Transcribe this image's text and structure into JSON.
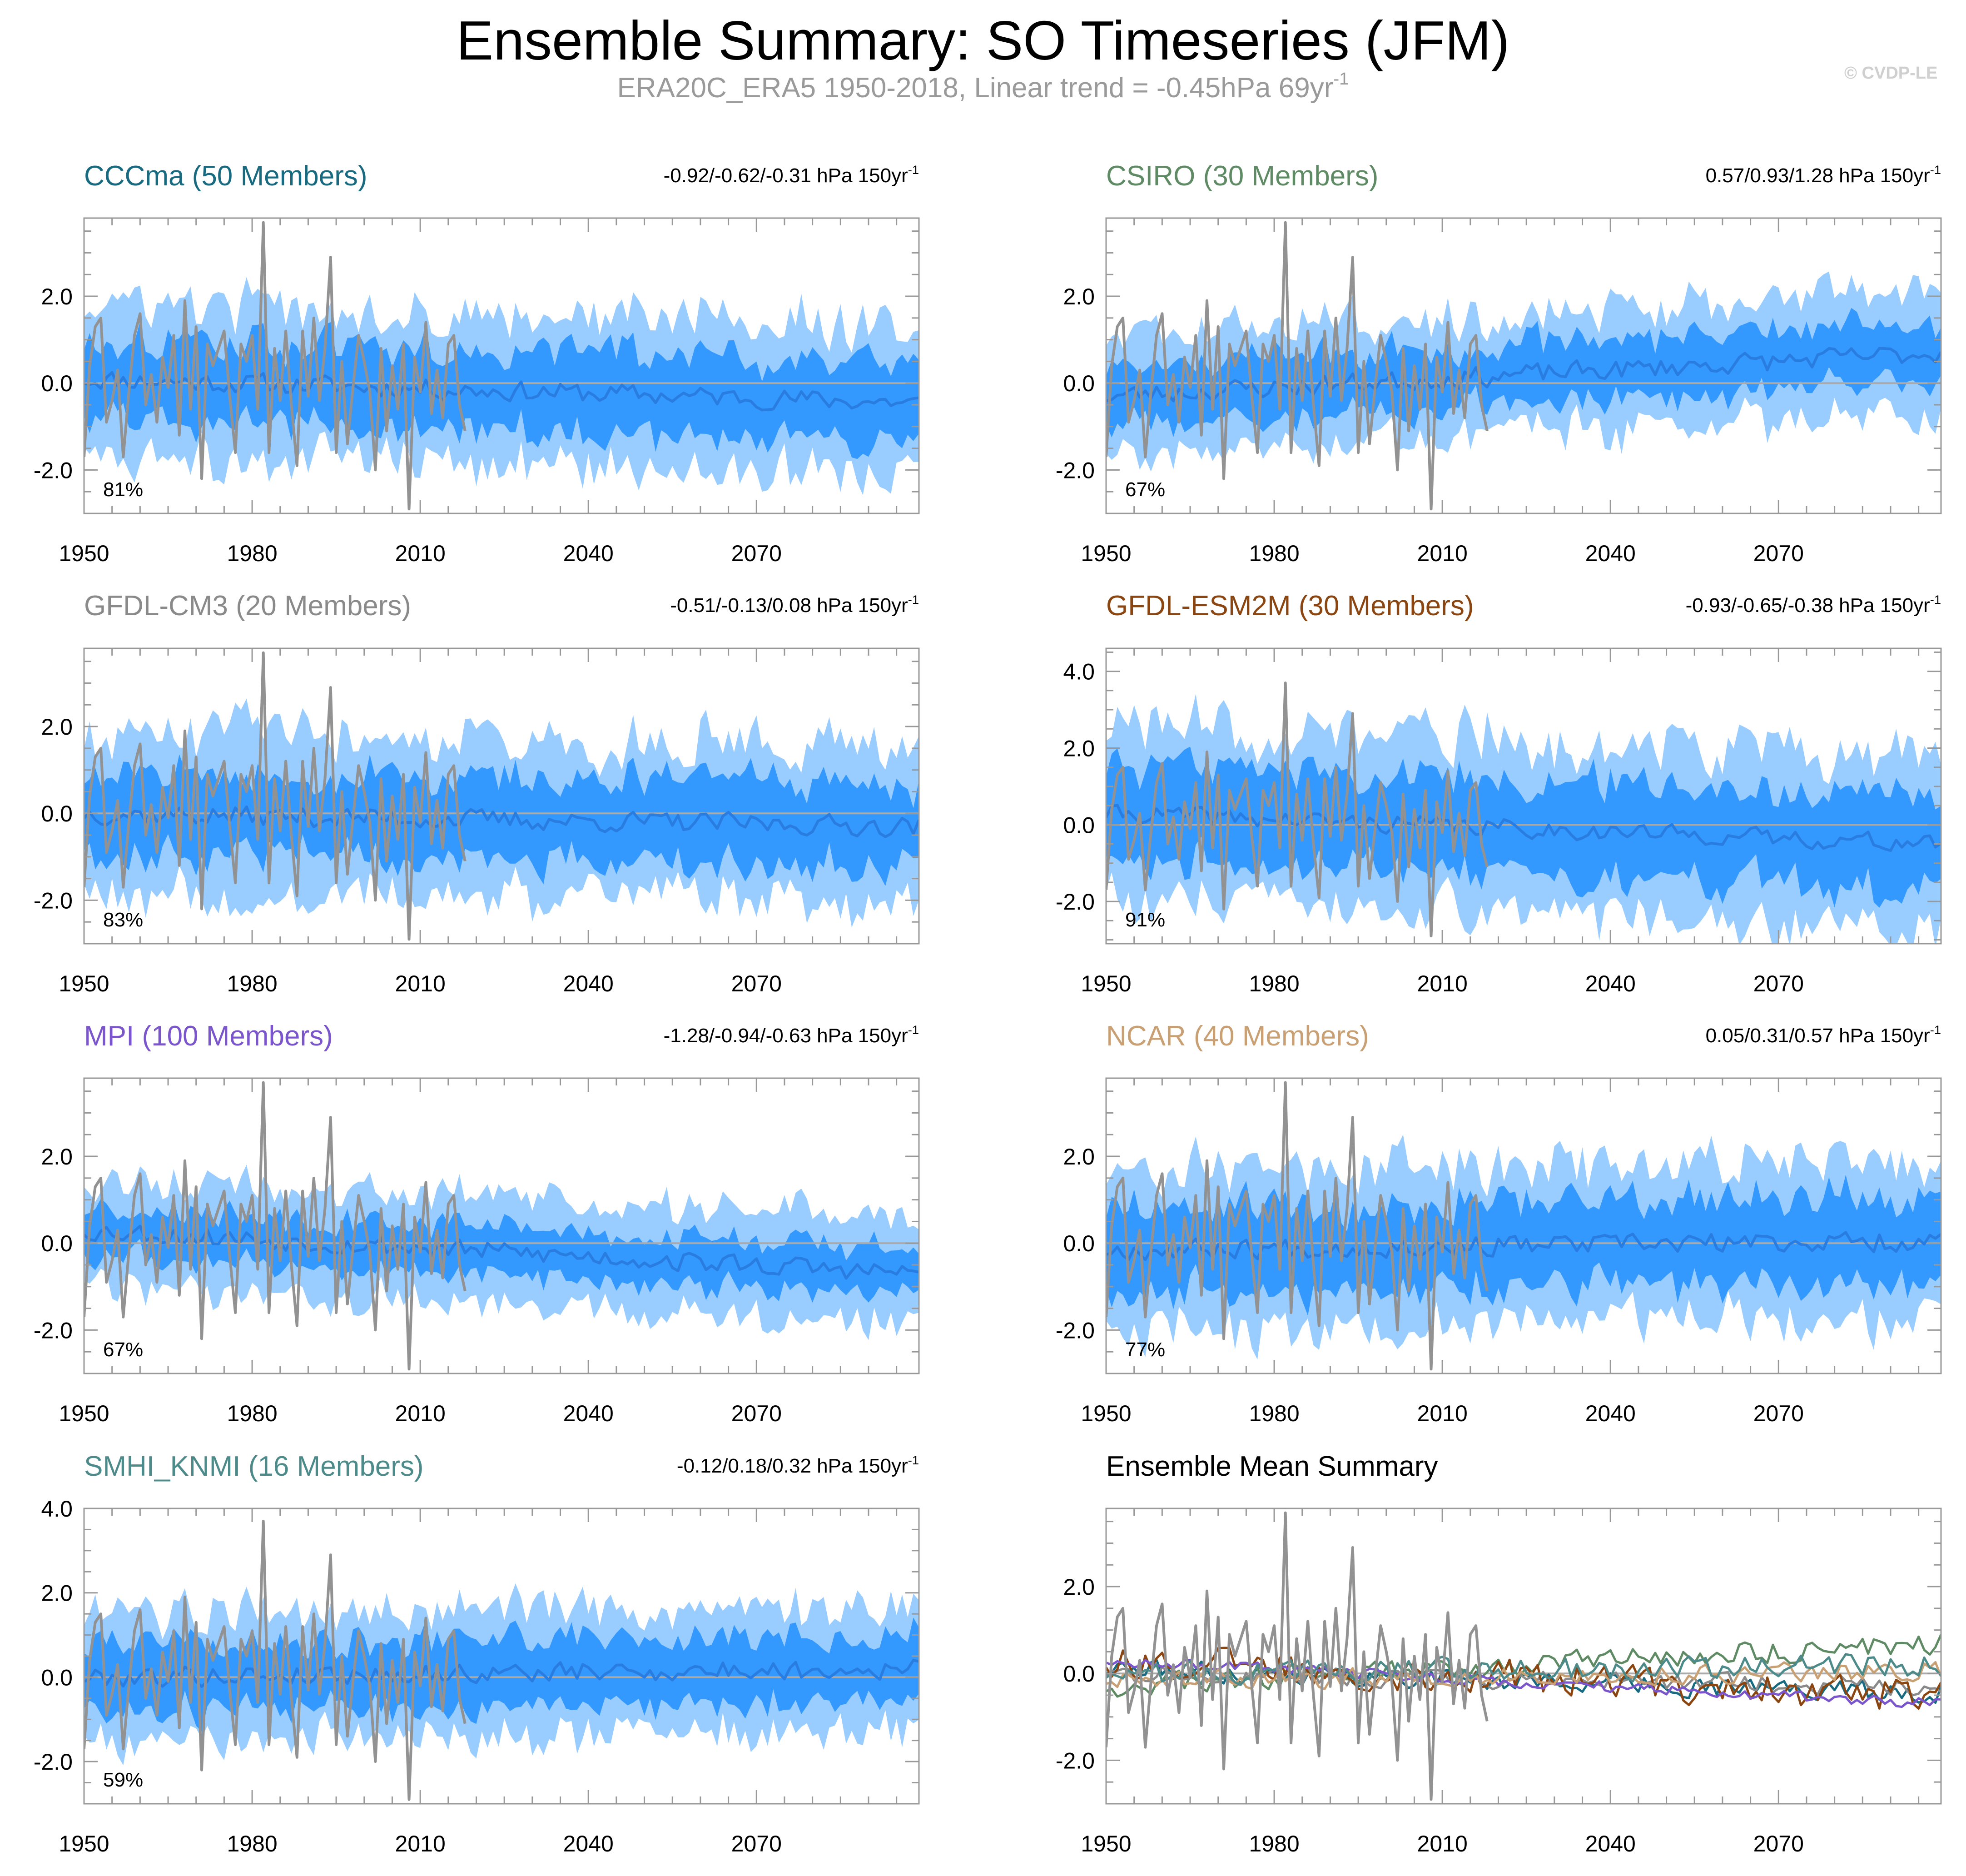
{
  "title": "Ensemble Summary: SO Timeseries (JFM)",
  "subtitle": {
    "main": "ERA20C_ERA5 1950-2018, Linear trend = -0.45hPa 69yr",
    "sup": "-1"
  },
  "credit": "© CVDP-LE",
  "colors": {
    "outer_band": "#99ccff",
    "inner_band": "#3399ff",
    "ens_mean": "#2a7de0",
    "observations": "#929292",
    "zero_line": "#aaaaaa"
  },
  "chart_data": [
    {
      "type": "area",
      "title": "CCCma (50 Members)",
      "title_color": "#186a80",
      "trend": "-0.92/-0.62/-0.31 hPa 150yr",
      "trend_sup": "-1",
      "percent": "81%",
      "x_range": [
        1950,
        2099
      ],
      "x_ticks": [
        "1950",
        "1980",
        "2010",
        "2040",
        "2070"
      ],
      "y_range": [
        -3.0,
        3.8
      ],
      "y_ticks": [
        "2.0",
        "0.0",
        "-2.0"
      ],
      "y_tick_values": [
        2.0,
        0.0,
        -2.0
      ],
      "mean_start": 0.1,
      "mean_end": -0.45,
      "inner_halfwidth": 0.95,
      "outer_halfwidth": 1.55,
      "seed": 11
    },
    {
      "type": "area",
      "title": "CSIRO (30 Members)",
      "title_color": "#5e8a64",
      "trend": "0.57/0.93/1.28 hPa 150yr",
      "trend_sup": "-1",
      "percent": "67%",
      "x_range": [
        1950,
        2099
      ],
      "x_ticks": [
        "1950",
        "1980",
        "2010",
        "2040",
        "2070"
      ],
      "y_range": [
        -3.0,
        3.8
      ],
      "y_ticks": [
        "2.0",
        "0.0",
        "-2.0"
      ],
      "y_tick_values": [
        2.0,
        0.0,
        -2.0
      ],
      "mean_start": -0.3,
      "mean_end": 0.7,
      "inner_halfwidth": 0.7,
      "outer_halfwidth": 1.25,
      "seed": 23
    },
    {
      "type": "area",
      "title": "GFDL-CM3 (20 Members)",
      "title_color": "#8a8a8a",
      "trend": "-0.51/-0.13/0.08 hPa 150yr",
      "trend_sup": "-1",
      "percent": "83%",
      "x_range": [
        1950,
        2099
      ],
      "x_ticks": [
        "1950",
        "1980",
        "2010",
        "2040",
        "2070"
      ],
      "y_range": [
        -3.0,
        3.8
      ],
      "y_ticks": [
        "2.0",
        "0.0",
        "-2.0"
      ],
      "y_tick_values": [
        2.0,
        0.0,
        -2.0
      ],
      "mean_start": 0.0,
      "mean_end": -0.3,
      "inner_halfwidth": 0.95,
      "outer_halfwidth": 1.6,
      "seed": 37
    },
    {
      "type": "area",
      "title": "GFDL-ESM2M (30 Members)",
      "title_color": "#8a4510",
      "trend": "-0.93/-0.65/-0.38 hPa 150yr",
      "trend_sup": "-1",
      "percent": "91%",
      "x_range": [
        1950,
        2099
      ],
      "x_ticks": [
        "1950",
        "1980",
        "2010",
        "2040",
        "2070"
      ],
      "y_range": [
        -3.1,
        4.6
      ],
      "y_ticks": [
        "4.0",
        "2.0",
        "0.0",
        "-2.0"
      ],
      "y_tick_values": [
        4.0,
        2.0,
        0.0,
        -2.0
      ],
      "mean_start": 0.3,
      "mean_end": -0.5,
      "inner_halfwidth": 1.3,
      "outer_halfwidth": 2.05,
      "seed": 41
    },
    {
      "type": "area",
      "title": "MPI (100 Members)",
      "title_color": "#7a55cc",
      "trend": "-1.28/-0.94/-0.63 hPa 150yr",
      "trend_sup": "-1",
      "percent": "67%",
      "x_range": [
        1950,
        2099
      ],
      "x_ticks": [
        "1950",
        "1980",
        "2010",
        "2040",
        "2070"
      ],
      "y_range": [
        -3.0,
        3.8
      ],
      "y_ticks": [
        "2.0",
        "0.0",
        "-2.0"
      ],
      "y_tick_values": [
        2.0,
        0.0,
        -2.0
      ],
      "mean_start": 0.3,
      "mean_end": -0.7,
      "inner_halfwidth": 0.55,
      "outer_halfwidth": 1.05,
      "seed": 53
    },
    {
      "type": "area",
      "title": "NCAR (40 Members)",
      "title_color": "#c8a074",
      "trend": "0.05/0.31/0.57 hPa 150yr",
      "trend_sup": "-1",
      "percent": "77%",
      "x_range": [
        1950,
        2099
      ],
      "x_ticks": [
        "1950",
        "1980",
        "2010",
        "2040",
        "2070"
      ],
      "y_range": [
        -3.0,
        3.8
      ],
      "y_ticks": [
        "2.0",
        "0.0",
        "-2.0"
      ],
      "y_tick_values": [
        2.0,
        0.0,
        -2.0
      ],
      "mean_start": -0.15,
      "mean_end": 0.05,
      "inner_halfwidth": 1.0,
      "outer_halfwidth": 1.6,
      "seed": 67
    },
    {
      "type": "area",
      "title": "SMHI_KNMI (16 Members)",
      "title_color": "#4d8a8a",
      "trend": "-0.12/0.18/0.32 hPa 150yr",
      "trend_sup": "-1",
      "percent": "59%",
      "x_range": [
        1950,
        2099
      ],
      "x_ticks": [
        "1950",
        "1980",
        "2010",
        "2040",
        "2070"
      ],
      "y_range": [
        -3.0,
        4.0
      ],
      "y_ticks": [
        "4.0",
        "2.0",
        "0.0",
        "-2.0"
      ],
      "y_tick_values": [
        4.0,
        2.0,
        0.0,
        -2.0
      ],
      "mean_start": 0.0,
      "mean_end": 0.2,
      "inner_halfwidth": 0.8,
      "outer_halfwidth": 1.3,
      "seed": 79
    },
    {
      "type": "line",
      "title": "Ensemble Mean Summary",
      "title_color": "#000000",
      "x_range": [
        1950,
        2099
      ],
      "x_ticks": [
        "1950",
        "1980",
        "2010",
        "2040",
        "2070"
      ],
      "y_range": [
        -3.0,
        3.8
      ],
      "y_ticks": [
        "2.0",
        "0.0",
        "-2.0"
      ],
      "y_tick_values": [
        2.0,
        0.0,
        -2.0
      ],
      "series": [
        {
          "name": "CCCma",
          "color": "#186a80",
          "start": 0.1,
          "end": -0.45,
          "amp": 0.22,
          "seed": 111
        },
        {
          "name": "CSIRO",
          "color": "#5e8a64",
          "start": -0.3,
          "end": 0.7,
          "amp": 0.25,
          "seed": 123
        },
        {
          "name": "GFDL-CM3",
          "color": "#8a8a8a",
          "start": 0.0,
          "end": -0.3,
          "amp": 0.2,
          "seed": 137
        },
        {
          "name": "GFDL-ESM2M",
          "color": "#8a4510",
          "start": 0.3,
          "end": -0.5,
          "amp": 0.38,
          "seed": 141
        },
        {
          "name": "MPI",
          "color": "#7a55cc",
          "start": 0.3,
          "end": -0.7,
          "amp": 0.12,
          "seed": 153
        },
        {
          "name": "NCAR",
          "color": "#c8a074",
          "start": -0.15,
          "end": 0.05,
          "amp": 0.22,
          "seed": 167
        },
        {
          "name": "SMHI_KNMI",
          "color": "#4d8a8a",
          "start": 0.0,
          "end": 0.2,
          "amp": 0.25,
          "seed": 179
        }
      ]
    }
  ],
  "observations": {
    "name": "ERA20C_ERA5",
    "years": [
      1950,
      1951,
      1952,
      1953,
      1954,
      1955,
      1956,
      1957,
      1958,
      1959,
      1960,
      1961,
      1962,
      1963,
      1964,
      1965,
      1966,
      1967,
      1968,
      1969,
      1970,
      1971,
      1972,
      1973,
      1974,
      1975,
      1976,
      1977,
      1978,
      1979,
      1980,
      1981,
      1982,
      1983,
      1984,
      1985,
      1986,
      1987,
      1988,
      1989,
      1990,
      1991,
      1992,
      1993,
      1994,
      1995,
      1996,
      1997,
      1998,
      1999,
      2000,
      2001,
      2002,
      2003,
      2004,
      2005,
      2006,
      2007,
      2008,
      2009,
      2010,
      2011,
      2012,
      2013,
      2014,
      2015,
      2016,
      2017,
      2018
    ],
    "values": [
      -1.7,
      0.4,
      1.3,
      1.5,
      -0.9,
      -0.4,
      0.3,
      -1.7,
      -0.2,
      1.1,
      1.6,
      -0.5,
      0.2,
      -0.9,
      0.6,
      -0.1,
      1.1,
      -1.2,
      1.9,
      -0.6,
      1.3,
      -2.2,
      0.9,
      0.4,
      0.8,
      1.2,
      -0.3,
      -1.6,
      0.9,
      0.5,
      1.1,
      -0.6,
      3.7,
      -1.6,
      0.8,
      -0.4,
      1.2,
      -0.5,
      -1.9,
      1.2,
      -0.3,
      1.5,
      -0.4,
      0.8,
      2.9,
      -1.6,
      0.5,
      -1.4,
      -0.1,
      1.1,
      0.5,
      -0.2,
      -2.0,
      0.8,
      -1.1,
      0.4,
      -0.6,
      0.9,
      -2.9,
      0.6,
      -0.2,
      1.4,
      -0.7,
      0.3,
      -0.8,
      0.9,
      1.1,
      -0.5,
      -1.1
    ]
  }
}
